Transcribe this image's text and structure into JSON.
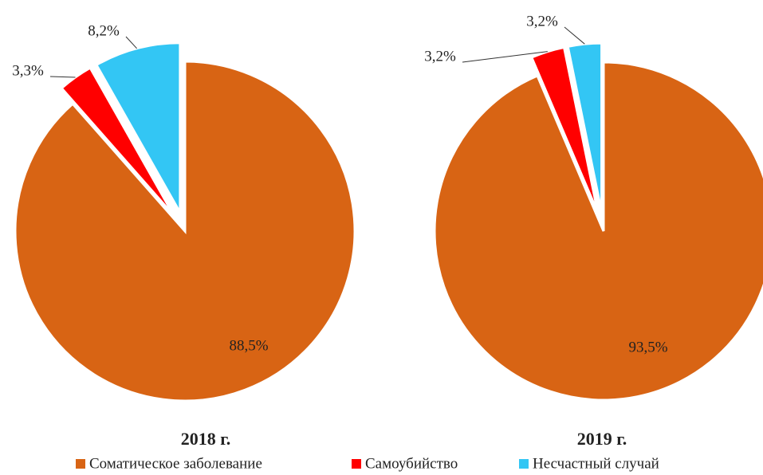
{
  "chart_data": [
    {
      "type": "pie",
      "title": "2018 г.",
      "values": [
        88.5,
        3.3,
        8.2
      ],
      "value_labels": [
        "88,5%",
        "3,3%",
        "8,2%"
      ]
    },
    {
      "type": "pie",
      "title": "2019 г.",
      "values": [
        93.5,
        3.2,
        3.2
      ],
      "value_labels": [
        "93,5%",
        "3,2%",
        "3,2%"
      ]
    }
  ],
  "legend": {
    "categories": [
      "Соматическое заболевание",
      "Самоубийство",
      "Несчастный случай"
    ],
    "colors": [
      "#d86414",
      "#ff0000",
      "#33c6f4"
    ]
  }
}
